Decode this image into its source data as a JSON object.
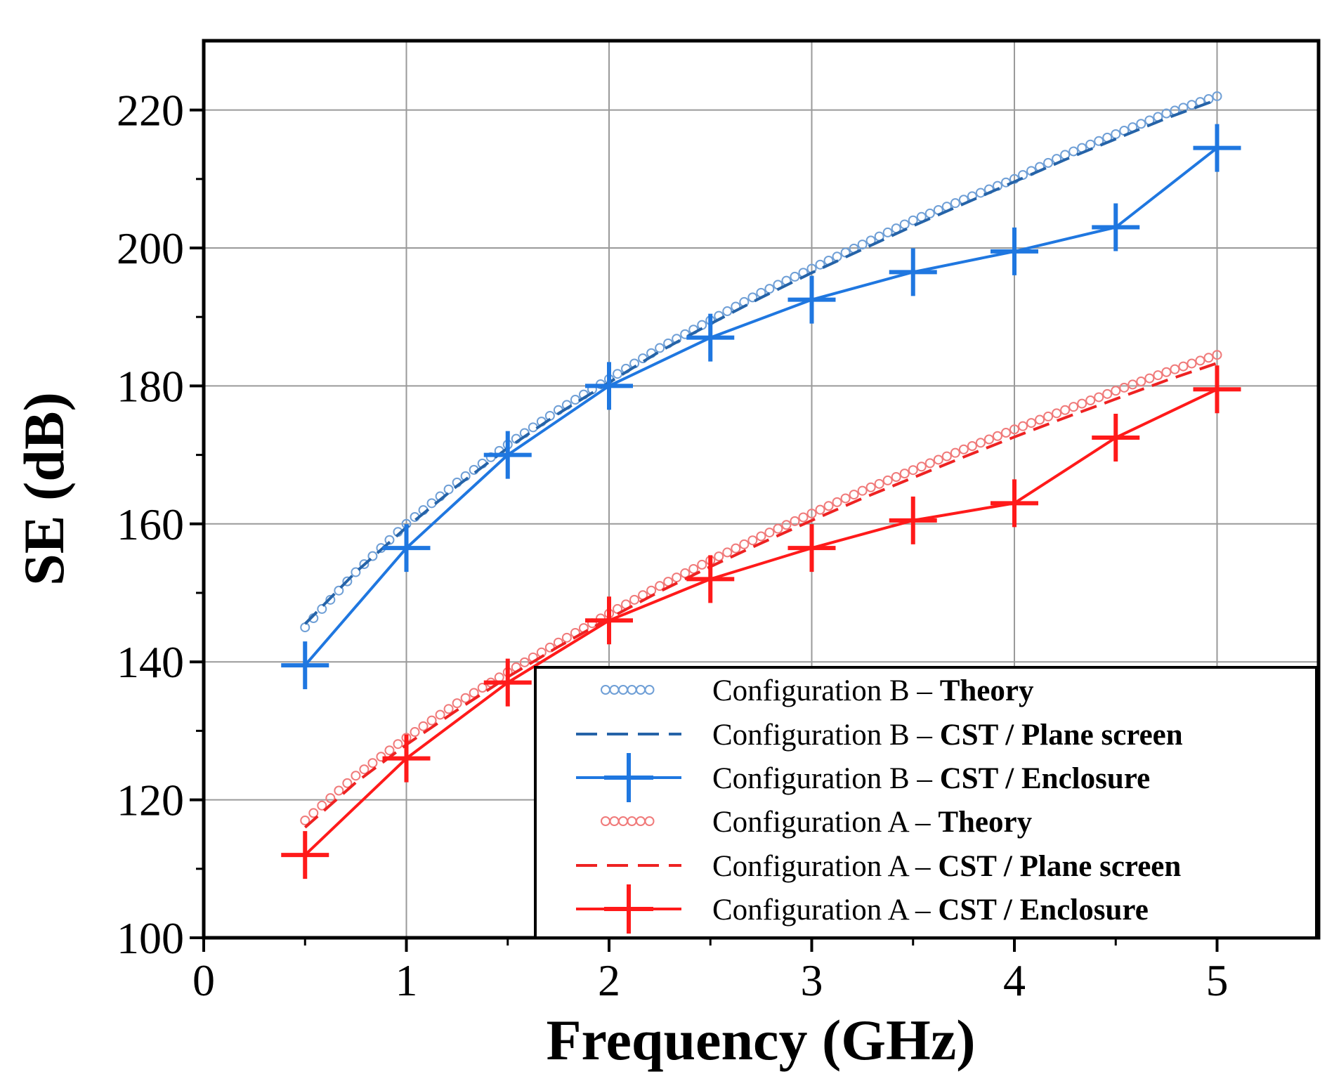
{
  "chart_data": {
    "type": "line",
    "title": "",
    "xlabel": "Frequency (GHz)",
    "ylabel": "SE (dB)",
    "xlim": [
      0,
      5.5
    ],
    "ylim": [
      100,
      230
    ],
    "xticks": [
      0,
      1,
      2,
      3,
      4,
      5
    ],
    "xtick_labels": [
      "0",
      "1",
      "2",
      "3",
      "4",
      "5"
    ],
    "yticks": [
      100,
      120,
      140,
      160,
      180,
      200,
      220
    ],
    "ytick_labels": [
      "100",
      "120",
      "140",
      "160",
      "180",
      "200",
      "220"
    ],
    "grid": true,
    "legend_position": "bottom-right",
    "colors": {
      "config_b_theory": "#6f9fd6",
      "config_b_plane": "#2563a8",
      "config_b_enclosure": "#1f77e0",
      "config_a_theory": "#f07a7a",
      "config_a_plane": "#ee2222",
      "config_a_enclosure": "#ff1a1a"
    },
    "series": [
      {
        "name_prefix": "Configuration B – ",
        "name_bold": "Theory",
        "style": "circles",
        "color_key": "config_b_theory",
        "x": [
          0.5,
          0.75,
          1.0,
          1.25,
          1.5,
          1.75,
          2.0,
          2.25,
          2.5,
          2.75,
          3.0,
          3.25,
          3.5,
          3.75,
          4.0,
          4.25,
          4.5,
          4.75,
          5.0
        ],
        "y": [
          145,
          153,
          160,
          166,
          171.5,
          176.5,
          181,
          185.5,
          189.5,
          193.5,
          197,
          200.5,
          204,
          207,
          210,
          213.5,
          216.5,
          219.5,
          222
        ]
      },
      {
        "name_prefix": "Configuration B – ",
        "name_bold": "CST / Plane screen",
        "style": "dashed",
        "color_key": "config_b_plane",
        "x": [
          0.5,
          0.75,
          1.0,
          1.25,
          1.5,
          1.75,
          2.0,
          2.25,
          2.5,
          2.75,
          3.0,
          3.25,
          3.5,
          3.75,
          4.0,
          4.25,
          4.5,
          4.75,
          5.0
        ],
        "y": [
          145.5,
          153,
          159.5,
          165.5,
          171,
          176,
          180.5,
          185,
          189,
          192.8,
          196.4,
          199.8,
          203.2,
          206.4,
          209.6,
          212.8,
          215.8,
          218.8,
          221.5
        ]
      },
      {
        "name_prefix": "Configuration B – ",
        "name_bold": "CST / Enclosure",
        "style": "solid-plus",
        "color_key": "config_b_enclosure",
        "x": [
          0.5,
          1.0,
          1.5,
          2.0,
          2.5,
          3.0,
          3.5,
          4.0,
          4.5,
          5.0
        ],
        "y": [
          139.5,
          156.5,
          170,
          180,
          187,
          192.5,
          196.5,
          199.5,
          203,
          214.5
        ]
      },
      {
        "name_prefix": "Configuration A – ",
        "name_bold": "Theory",
        "style": "circles",
        "color_key": "config_a_theory",
        "x": [
          0.5,
          0.75,
          1.0,
          1.25,
          1.5,
          1.75,
          2.0,
          2.25,
          2.5,
          2.75,
          3.0,
          3.25,
          3.5,
          3.75,
          4.0,
          4.25,
          4.5,
          4.75,
          5.0
        ],
        "y": [
          117,
          123.5,
          129,
          134,
          138.5,
          142.8,
          147,
          151,
          154.7,
          158.2,
          161.5,
          164.8,
          167.8,
          170.8,
          173.7,
          176.5,
          179.3,
          182,
          184.5
        ]
      },
      {
        "name_prefix": "Configuration A – ",
        "name_bold": "CST / Plane screen",
        "style": "dashed",
        "color_key": "config_a_plane",
        "x": [
          0.5,
          0.75,
          1.0,
          1.25,
          1.5,
          1.75,
          2.0,
          2.25,
          2.5,
          2.75,
          3.0,
          3.25,
          3.5,
          3.75,
          4.0,
          4.25,
          4.5,
          4.75,
          5.0
        ],
        "y": [
          116,
          122.5,
          128,
          133,
          137.8,
          142.2,
          146.3,
          150.2,
          153.8,
          157.2,
          160.5,
          163.7,
          166.7,
          169.7,
          172.6,
          175.4,
          178.1,
          180.8,
          183.3
        ]
      },
      {
        "name_prefix": "Configuration A – ",
        "name_bold": "CST / Enclosure",
        "style": "solid-plus",
        "color_key": "config_a_enclosure",
        "x": [
          0.5,
          1.0,
          1.5,
          2.0,
          2.5,
          3.0,
          3.5,
          4.0,
          4.5,
          5.0
        ],
        "y": [
          112,
          126,
          137,
          146,
          152,
          156.5,
          160.5,
          163,
          172.5,
          179.5
        ]
      }
    ]
  }
}
